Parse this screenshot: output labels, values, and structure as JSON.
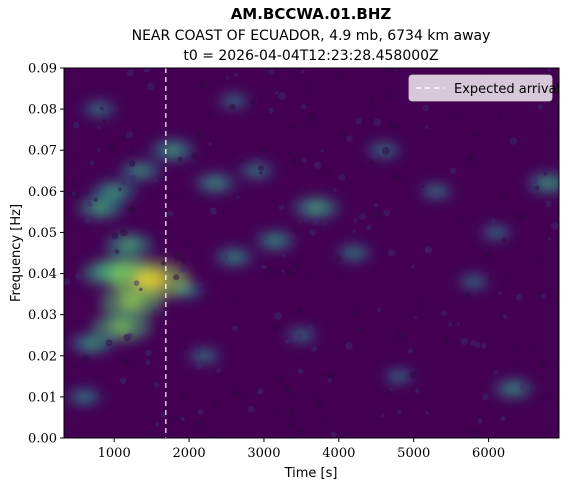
{
  "titles": {
    "line1": "AM.BCCWA.01.BHZ",
    "line2": "NEAR COAST OF ECUADOR, 4.9 mb, 6734 km away",
    "line3": "t0 = 2026-04-04T12:23:28.458000Z"
  },
  "chart_data": {
    "type": "heatmap",
    "xlabel": "Time [s]",
    "ylabel": "Frequency [Hz]",
    "xlim": [
      330,
      6940
    ],
    "ylim": [
      0.0,
      0.09
    ],
    "x_ticks": [
      1000,
      2000,
      3000,
      4000,
      5000,
      6000
    ],
    "y_ticks": [
      "0.00",
      "0.01",
      "0.02",
      "0.03",
      "0.04",
      "0.05",
      "0.06",
      "0.07",
      "0.08",
      "0.09"
    ],
    "colormap": "viridis",
    "background_color": "#440154",
    "expected_arrival": {
      "x": 1690,
      "style": "dashed",
      "color": "#ffffff"
    },
    "legend": {
      "position": "top-right",
      "entries": [
        {
          "label": "Expected arrival",
          "style": "dashed-white"
        }
      ]
    },
    "hotspots": [
      {
        "x": 1480,
        "y": 0.0385,
        "intensity": 1.0
      },
      {
        "x": 1230,
        "y": 0.033,
        "intensity": 0.72
      },
      {
        "x": 1100,
        "y": 0.027,
        "intensity": 0.65
      },
      {
        "x": 1100,
        "y": 0.041,
        "intensity": 0.6
      },
      {
        "x": 900,
        "y": 0.04,
        "intensity": 0.5
      },
      {
        "x": 1200,
        "y": 0.047,
        "intensity": 0.45
      },
      {
        "x": 820,
        "y": 0.056,
        "intensity": 0.42
      },
      {
        "x": 1000,
        "y": 0.06,
        "intensity": 0.38
      },
      {
        "x": 1780,
        "y": 0.07,
        "intensity": 0.38
      },
      {
        "x": 1350,
        "y": 0.065,
        "intensity": 0.32
      },
      {
        "x": 2350,
        "y": 0.062,
        "intensity": 0.32
      },
      {
        "x": 3700,
        "y": 0.056,
        "intensity": 0.42
      },
      {
        "x": 3150,
        "y": 0.048,
        "intensity": 0.3
      },
      {
        "x": 2600,
        "y": 0.044,
        "intensity": 0.28
      },
      {
        "x": 6800,
        "y": 0.062,
        "intensity": 0.35
      },
      {
        "x": 6330,
        "y": 0.012,
        "intensity": 0.3
      },
      {
        "x": 1950,
        "y": 0.036,
        "intensity": 0.25
      },
      {
        "x": 700,
        "y": 0.023,
        "intensity": 0.35
      },
      {
        "x": 2900,
        "y": 0.065,
        "intensity": 0.22
      },
      {
        "x": 4600,
        "y": 0.07,
        "intensity": 0.2
      },
      {
        "x": 4200,
        "y": 0.045,
        "intensity": 0.22
      },
      {
        "x": 5300,
        "y": 0.06,
        "intensity": 0.18
      },
      {
        "x": 5800,
        "y": 0.038,
        "intensity": 0.16
      },
      {
        "x": 2200,
        "y": 0.02,
        "intensity": 0.18
      },
      {
        "x": 3500,
        "y": 0.025,
        "intensity": 0.16
      },
      {
        "x": 800,
        "y": 0.08,
        "intensity": 0.2
      },
      {
        "x": 2600,
        "y": 0.082,
        "intensity": 0.16
      },
      {
        "x": 600,
        "y": 0.01,
        "intensity": 0.22
      },
      {
        "x": 4800,
        "y": 0.015,
        "intensity": 0.14
      },
      {
        "x": 6100,
        "y": 0.05,
        "intensity": 0.16
      }
    ]
  }
}
